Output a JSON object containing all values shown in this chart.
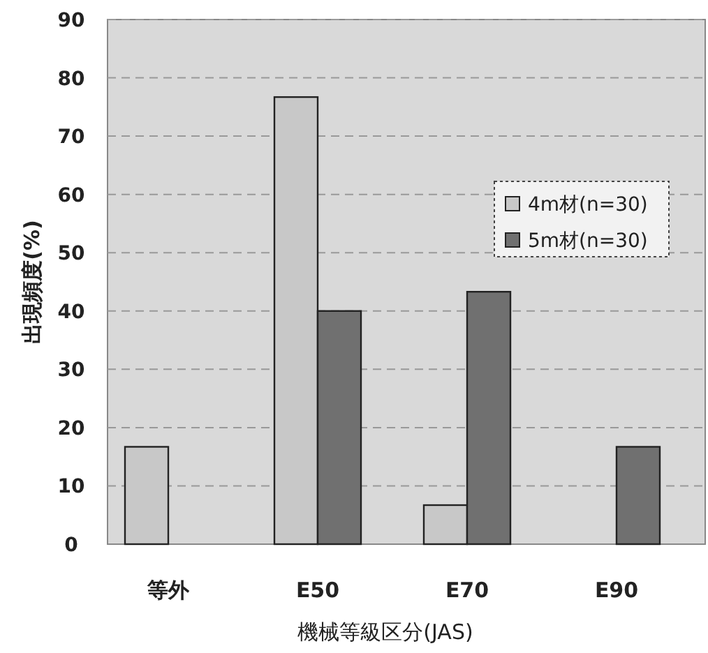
{
  "chart_data": {
    "type": "bar",
    "xlabel": "機械等級区分(JAS)",
    "ylabel": "出現頻度(%)",
    "categories": [
      "等外",
      "E50",
      "E70",
      "E90"
    ],
    "series": [
      {
        "name": "4m材(n=30)",
        "color": "#c8c8c8",
        "values": [
          16.7,
          76.7,
          6.7,
          0
        ]
      },
      {
        "name": "5m材(n=30)",
        "color": "#707070",
        "values": [
          0,
          40,
          43.3,
          16.7
        ]
      }
    ],
    "ylim": [
      0,
      90
    ],
    "yticks": [
      0,
      10,
      20,
      30,
      40,
      50,
      60,
      70,
      80,
      90
    ],
    "grid": "y",
    "legend": "right"
  }
}
